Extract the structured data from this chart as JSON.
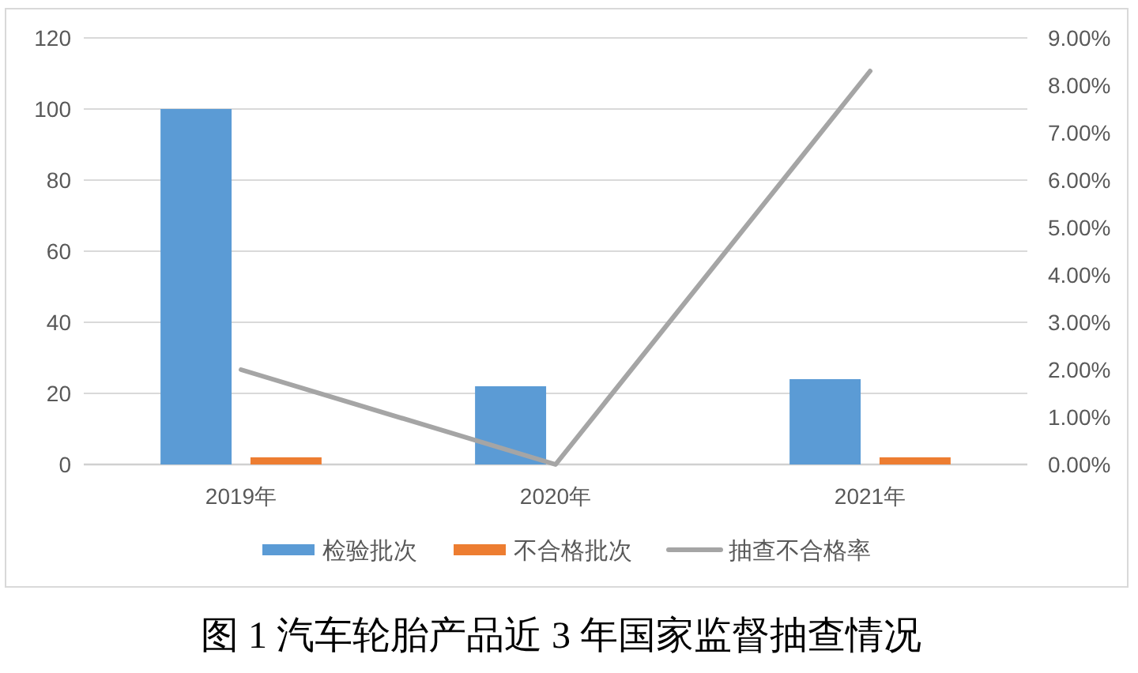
{
  "chart_data": {
    "type": "bar",
    "title": "图 1 汽车轮胎产品近 3 年国家监督抽查情况",
    "categories": [
      "2019年",
      "2020年",
      "2021年"
    ],
    "series": [
      {
        "name": "检验批次",
        "color": "#5b9bd5",
        "values": [
          100,
          22,
          24
        ]
      },
      {
        "name": "不合格批次",
        "color": "#ed7d31",
        "values": [
          2,
          0,
          2
        ]
      },
      {
        "name": "抽查不合格率",
        "type": "line",
        "axis": "y2",
        "color": "#a5a5a5",
        "values": [
          2,
          0,
          8.3
        ]
      }
    ],
    "ylim": [
      0,
      120
    ],
    "yticks": [
      0,
      20,
      40,
      60,
      80,
      100,
      120
    ],
    "y2lim": [
      0,
      9
    ],
    "y2ticks": [
      {
        "value": 0,
        "label": "0.00%"
      },
      {
        "value": 1,
        "label": "1.00%"
      },
      {
        "value": 2,
        "label": "2.00%"
      },
      {
        "value": 3,
        "label": "3.00%"
      },
      {
        "value": 4,
        "label": "4.00%"
      },
      {
        "value": 5,
        "label": "5.00%"
      },
      {
        "value": 6,
        "label": "6.00%"
      },
      {
        "value": 7,
        "label": "7.00%"
      },
      {
        "value": 8,
        "label": "8.00%"
      },
      {
        "value": 9,
        "label": "9.00%"
      }
    ],
    "grid": "y",
    "legend": "bottom"
  }
}
